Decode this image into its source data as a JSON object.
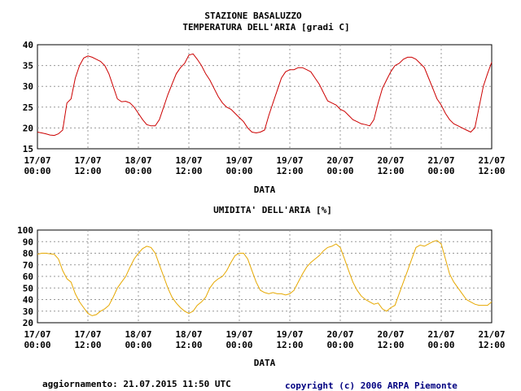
{
  "page": {
    "station_title": "STAZIONE BASALUZZO",
    "updated": "aggiornamento: 21.07.2015 11:50 UTC",
    "copyright": "copyright (c) 2006 ARPA Piemonte"
  },
  "chart_data": [
    {
      "type": "line",
      "title": "TEMPERATURA DELL'ARIA [gradi C]",
      "xlabel": "DATA",
      "ylabel": "",
      "ylim": [
        15,
        40
      ],
      "yticks": [
        15,
        20,
        25,
        30,
        35,
        40
      ],
      "xlim": [
        0,
        108
      ],
      "x_ticks": [
        {
          "h": 0,
          "date": "17/07",
          "time": "00:00"
        },
        {
          "h": 12,
          "date": "17/07",
          "time": "12:00"
        },
        {
          "h": 24,
          "date": "18/07",
          "time": "00:00"
        },
        {
          "h": 36,
          "date": "18/07",
          "time": "12:00"
        },
        {
          "h": 48,
          "date": "19/07",
          "time": "00:00"
        },
        {
          "h": 60,
          "date": "19/07",
          "time": "12:00"
        },
        {
          "h": 72,
          "date": "20/07",
          "time": "00:00"
        },
        {
          "h": 84,
          "date": "20/07",
          "time": "12:00"
        },
        {
          "h": 96,
          "date": "21/07",
          "time": "00:00"
        },
        {
          "h": 108,
          "date": "21/07",
          "time": "12:00"
        }
      ],
      "grid": true,
      "color": "#cc0000",
      "series": [
        {
          "x": [
            0,
            1,
            2,
            3,
            4,
            5,
            6,
            7,
            8,
            9,
            10,
            11,
            12,
            13,
            14,
            15,
            16,
            17,
            18,
            19,
            20,
            21,
            22,
            23,
            24,
            25,
            26,
            27,
            28,
            29,
            30,
            31,
            32,
            33,
            34,
            35,
            36,
            37,
            38,
            39,
            40,
            41,
            42,
            43,
            44,
            45,
            46,
            47,
            48,
            49,
            50,
            51,
            52,
            53,
            54,
            55,
            56,
            57,
            58,
            59,
            60,
            61,
            62,
            63,
            64,
            65,
            66,
            67,
            68,
            69,
            70,
            71,
            72,
            73,
            74,
            75,
            76,
            77,
            78,
            79,
            80,
            81,
            82,
            83,
            84,
            85,
            86,
            87,
            88,
            89,
            90,
            91,
            92,
            93,
            94,
            95,
            96,
            97,
            98,
            99,
            100,
            101,
            102,
            103,
            104,
            105,
            106,
            107,
            108
          ],
          "values": [
            19,
            18.8,
            18.6,
            18.3,
            18.2,
            18.6,
            19.5,
            26,
            27,
            32,
            35,
            36.8,
            37.3,
            37,
            36.5,
            36,
            35,
            33,
            30,
            27,
            26.3,
            26.4,
            26,
            25,
            23.5,
            22,
            20.8,
            20.5,
            20.5,
            22,
            25,
            28,
            30.5,
            33,
            34.5,
            35.5,
            37.5,
            37.8,
            36.5,
            35,
            33,
            31.5,
            29.5,
            27.5,
            26,
            25,
            24.5,
            23.5,
            22.5,
            21.5,
            20,
            19,
            18.8,
            19,
            19.5,
            23,
            26,
            29,
            32,
            33.5,
            34,
            34,
            34.5,
            34.5,
            34,
            33.5,
            32,
            30.5,
            28.5,
            26.5,
            26,
            25.5,
            24.5,
            24,
            23,
            22,
            21.5,
            21,
            20.8,
            20.5,
            22,
            26,
            29.5,
            31.5,
            33.5,
            35,
            35.5,
            36.5,
            37,
            37,
            36.5,
            35.5,
            34.5,
            32,
            29.5,
            27,
            25.5,
            23.5,
            22,
            21,
            20.5,
            20,
            19.5,
            19,
            20,
            25,
            30,
            33,
            35.8
          ]
        }
      ]
    },
    {
      "type": "line",
      "title": "UMIDITA' DELL'ARIA [%]",
      "xlabel": "DATA",
      "ylabel": "",
      "ylim": [
        20,
        100
      ],
      "yticks": [
        20,
        30,
        40,
        50,
        60,
        70,
        80,
        90,
        100
      ],
      "xlim": [
        0,
        108
      ],
      "x_ticks": [
        {
          "h": 0,
          "date": "17/07",
          "time": "00:00"
        },
        {
          "h": 12,
          "date": "17/07",
          "time": "12:00"
        },
        {
          "h": 24,
          "date": "18/07",
          "time": "00:00"
        },
        {
          "h": 36,
          "date": "18/07",
          "time": "12:00"
        },
        {
          "h": 48,
          "date": "19/07",
          "time": "00:00"
        },
        {
          "h": 60,
          "date": "19/07",
          "time": "12:00"
        },
        {
          "h": 72,
          "date": "20/07",
          "time": "00:00"
        },
        {
          "h": 84,
          "date": "20/07",
          "time": "12:00"
        },
        {
          "h": 96,
          "date": "21/07",
          "time": "00:00"
        },
        {
          "h": 108,
          "date": "21/07",
          "time": "12:00"
        }
      ],
      "grid": true,
      "color": "#e6a800",
      "series": [
        {
          "x": [
            0,
            1,
            2,
            3,
            4,
            5,
            6,
            7,
            8,
            9,
            10,
            11,
            12,
            13,
            14,
            15,
            16,
            17,
            18,
            19,
            20,
            21,
            22,
            23,
            24,
            25,
            26,
            27,
            28,
            29,
            30,
            31,
            32,
            33,
            34,
            35,
            36,
            37,
            38,
            39,
            40,
            41,
            42,
            43,
            44,
            45,
            46,
            47,
            48,
            49,
            50,
            51,
            52,
            53,
            54,
            55,
            56,
            57,
            58,
            59,
            60,
            61,
            62,
            63,
            64,
            65,
            66,
            67,
            68,
            69,
            70,
            71,
            72,
            73,
            74,
            75,
            76,
            77,
            78,
            79,
            80,
            81,
            82,
            83,
            84,
            85,
            86,
            87,
            88,
            89,
            90,
            91,
            92,
            93,
            94,
            95,
            96,
            97,
            98,
            99,
            100,
            101,
            102,
            103,
            104,
            105,
            106,
            107,
            108
          ],
          "values": [
            79,
            80,
            80,
            79.5,
            79,
            75,
            65,
            58,
            55,
            45,
            38,
            33,
            28,
            26,
            27,
            30,
            32,
            35,
            42,
            50,
            55,
            60,
            68,
            75,
            80,
            84,
            86,
            85,
            80,
            70,
            60,
            50,
            42,
            37,
            33,
            30,
            28,
            30,
            35,
            38,
            42,
            50,
            55,
            58,
            60,
            65,
            72,
            78,
            80,
            80,
            75,
            65,
            55,
            48,
            46,
            45,
            46,
            45,
            45,
            44,
            45,
            48,
            55,
            62,
            68,
            72,
            75,
            78,
            82,
            85,
            86,
            88,
            85,
            75,
            65,
            55,
            48,
            43,
            40,
            38,
            36,
            37,
            32,
            30,
            33,
            35,
            45,
            55,
            65,
            75,
            85,
            87,
            86,
            88,
            90,
            91,
            88,
            75,
            62,
            55,
            50,
            45,
            40,
            38,
            36,
            35,
            35,
            35,
            38
          ]
        }
      ]
    }
  ]
}
